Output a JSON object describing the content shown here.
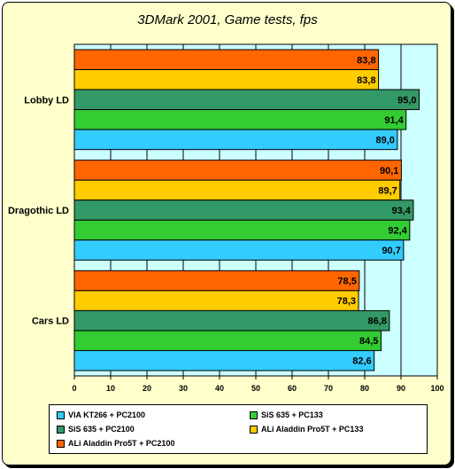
{
  "chart_data": {
    "type": "bar",
    "orientation": "horizontal",
    "title": "3DMark 2001, Game tests, fps",
    "xlabel": "",
    "ylabel": "",
    "xlim": [
      0,
      100
    ],
    "x_ticks": [
      0,
      10,
      20,
      30,
      40,
      50,
      60,
      70,
      80,
      90,
      100
    ],
    "grid": true,
    "legend_position": "bottom",
    "categories": [
      "Lobby LD",
      "Dragothic LD",
      "Cars LD"
    ],
    "series": [
      {
        "name": "ALi Aladdin Pro5T + PC2100",
        "color": "#ff6600",
        "values": [
          83.8,
          90.1,
          78.5
        ],
        "labels": [
          "83,8",
          "90,1",
          "78,5"
        ]
      },
      {
        "name": "ALi Aladdin Pro5T + PC133",
        "color": "#ffcc00",
        "values": [
          83.8,
          89.7,
          78.3
        ],
        "labels": [
          "83,8",
          "89,7",
          "78,3"
        ]
      },
      {
        "name": "SiS 635 + PC2100",
        "color": "#339966",
        "values": [
          95.0,
          93.4,
          86.8
        ],
        "labels": [
          "95,0",
          "93,4",
          "86,8"
        ]
      },
      {
        "name": "SiS 635 + PC133",
        "color": "#33cc33",
        "values": [
          91.4,
          92.4,
          84.5
        ],
        "labels": [
          "91,4",
          "92,4",
          "84,5"
        ]
      },
      {
        "name": "VIA KT266 + PC2100",
        "color": "#33ccff",
        "values": [
          89.0,
          90.7,
          82.6
        ],
        "labels": [
          "89,0",
          "90,7",
          "82,6"
        ]
      }
    ],
    "legend_order": [
      4,
      3,
      2,
      1,
      0
    ],
    "colors": {
      "plot_background": "#ccffff",
      "page_background": "#ffffcc",
      "highlight_band": "#ffffff"
    }
  }
}
